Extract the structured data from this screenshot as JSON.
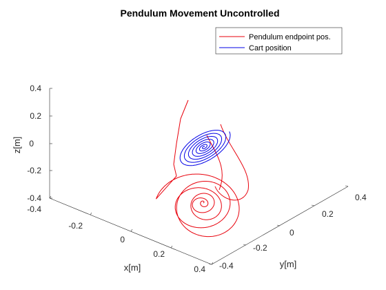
{
  "chart_data": {
    "type": "line",
    "projection": "3d",
    "title": "Pendulum Movement Uncontrolled",
    "xlabel": "x[m]",
    "ylabel": "y[m]",
    "zlabel": "z[m]",
    "xlim": [
      -0.4,
      0.4
    ],
    "ylim": [
      -0.4,
      0.4
    ],
    "zlim": [
      -0.4,
      0.4
    ],
    "xticks": [
      "-0.4",
      "-0.2",
      "0",
      "0.2",
      "0.4"
    ],
    "yticks": [
      "-0.4",
      "-0.2",
      "0",
      "0.2",
      "0.4"
    ],
    "zticks": [
      "-0.4",
      "-0.2",
      "0",
      "0.2",
      "0.4"
    ],
    "grid": false,
    "legend_position": "top-right",
    "series": [
      {
        "name": "Pendulum endpoint pos.",
        "color": "#e8000b",
        "behavior": "spiral-converging",
        "start": [
          -0.05,
          -0.2,
          0.33
        ],
        "end": [
          0.0,
          0.0,
          -0.42
        ]
      },
      {
        "name": "Cart position",
        "color": "#0000e6",
        "behavior": "spiral-converging",
        "start": [
          0.0,
          0.0,
          0.0
        ],
        "end": [
          0.0,
          0.0,
          0.0
        ]
      }
    ]
  }
}
